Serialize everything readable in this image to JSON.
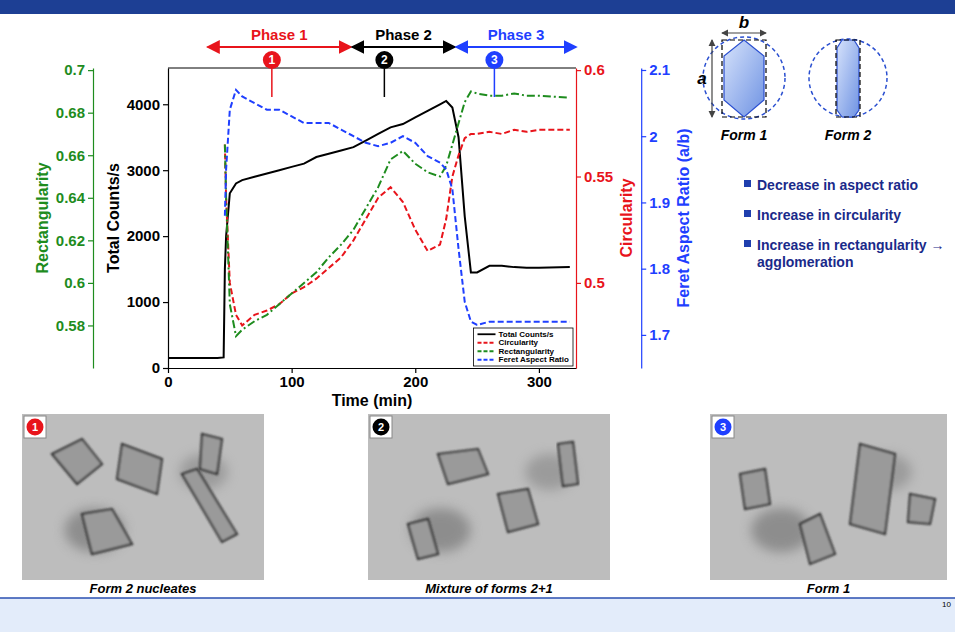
{
  "chart_data": {
    "type": "line",
    "xlabel": "Time (min)",
    "xlim": [
      0,
      330
    ],
    "xticks": [
      0,
      100,
      200,
      300
    ],
    "ylabel": "Total Counts/s",
    "ylim": [
      0,
      4550
    ],
    "yticks": [
      0,
      1000,
      2000,
      3000,
      4000
    ],
    "y2label": "Circularity",
    "y2lim": [
      0.46,
      0.601
    ],
    "y2ticks": [
      0.5,
      0.55,
      0.6
    ],
    "y3label": "Rectangularity",
    "y3lim": [
      0.56,
      0.701
    ],
    "y3ticks": [
      0.58,
      0.6,
      0.62,
      0.64,
      0.66,
      0.68,
      0.7
    ],
    "y4label": "Feret Aspect Ratio (a/b)",
    "y4lim": [
      1.65,
      2.103
    ],
    "y4ticks": [
      1.7,
      1.8,
      1.9,
      2,
      2.1
    ],
    "legend": "lower right",
    "x": [
      0,
      10,
      20,
      30,
      40,
      45,
      46,
      47,
      50,
      55,
      60,
      70,
      80,
      90,
      100,
      110,
      120,
      130,
      140,
      150,
      160,
      170,
      180,
      190,
      200,
      210,
      220,
      225,
      230,
      235,
      240,
      245,
      250,
      260,
      270,
      280,
      290,
      300,
      325
    ],
    "series": [
      {
        "name": "Total Counts/s",
        "color": "#000000",
        "line_style": "solid",
        "values": [
          150,
          150,
          150,
          150,
          150,
          160,
          1500,
          2000,
          2650,
          2800,
          2850,
          2900,
          2950,
          3000,
          3050,
          3100,
          3200,
          3250,
          3300,
          3350,
          3450,
          3550,
          3650,
          3700,
          3800,
          3900,
          4000,
          4050,
          3950,
          3500,
          2300,
          1450,
          1450,
          1550,
          1550,
          1530,
          1520,
          1520,
          1530
        ]
      },
      {
        "name": "Circularity",
        "color": "#e8141b",
        "line_style": "dashed",
        "axis": "y2",
        "values": [
          null,
          null,
          null,
          null,
          null,
          null,
          0.565,
          0.54,
          0.5,
          0.485,
          0.48,
          0.485,
          0.487,
          0.49,
          0.495,
          0.498,
          0.502,
          0.507,
          0.512,
          0.52,
          0.53,
          0.54,
          0.545,
          0.538,
          0.525,
          0.515,
          0.518,
          0.53,
          0.55,
          0.56,
          0.568,
          0.57,
          0.57,
          0.571,
          0.57,
          0.572,
          0.571,
          0.572,
          0.572
        ]
      },
      {
        "name": "Rectangularity",
        "color": "#1e8c1e",
        "line_style": "dashdot",
        "axis": "y3",
        "values": [
          null,
          null,
          null,
          null,
          null,
          null,
          0.665,
          0.64,
          0.59,
          0.575,
          0.578,
          0.582,
          0.585,
          0.59,
          0.595,
          0.6,
          0.605,
          0.612,
          0.618,
          0.625,
          0.635,
          0.645,
          0.658,
          0.662,
          0.656,
          0.652,
          0.65,
          0.655,
          0.665,
          0.675,
          0.685,
          0.69,
          0.689,
          0.688,
          0.688,
          0.689,
          0.688,
          0.688,
          0.687
        ]
      },
      {
        "name": "Feret Aspect Ratio",
        "color": "#1f3fff",
        "line_style": "dashed",
        "axis": "y4",
        "values": [
          null,
          null,
          null,
          null,
          null,
          null,
          1.88,
          1.95,
          2.04,
          2.07,
          2.06,
          2.05,
          2.04,
          2.04,
          2.03,
          2.02,
          2.02,
          2.02,
          2.01,
          2.0,
          1.99,
          1.985,
          1.99,
          2.0,
          1.99,
          1.97,
          1.96,
          1.95,
          1.92,
          1.83,
          1.75,
          1.72,
          1.715,
          1.72,
          1.72,
          1.72,
          1.72,
          1.72,
          1.72
        ]
      }
    ],
    "phases": [
      {
        "label": "Phase 1",
        "start": 32,
        "end": 148,
        "color": "#e8141b"
      },
      {
        "label": "Phase 2",
        "start": 149,
        "end": 232,
        "color": "#000000"
      },
      {
        "label": "Phase 3",
        "start": 233,
        "end": 330,
        "color": "#1f3fff"
      }
    ],
    "markers": [
      {
        "label": "1",
        "x": 84,
        "color": "#e8141b"
      },
      {
        "label": "2",
        "x": 175,
        "color": "#000000"
      },
      {
        "label": "3",
        "x": 264,
        "color": "#1f3fff"
      }
    ]
  },
  "slide": {
    "diagram": {
      "width_label": "b",
      "height_label": "a",
      "forms": [
        "Form 1",
        "Form 2"
      ]
    },
    "bullets": [
      "Decrease in aspect ratio",
      "Increase in circularity",
      "Increase in rectangularity → agglomeration"
    ],
    "photos": [
      {
        "marker": "1",
        "color": "#e8141b",
        "caption": "Form 2 nucleates"
      },
      {
        "marker": "2",
        "color": "#000000",
        "caption": "Mixture of forms 2+1"
      },
      {
        "marker": "3",
        "color": "#1f3fff",
        "caption": "Form 1"
      }
    ],
    "page_number": "10"
  }
}
